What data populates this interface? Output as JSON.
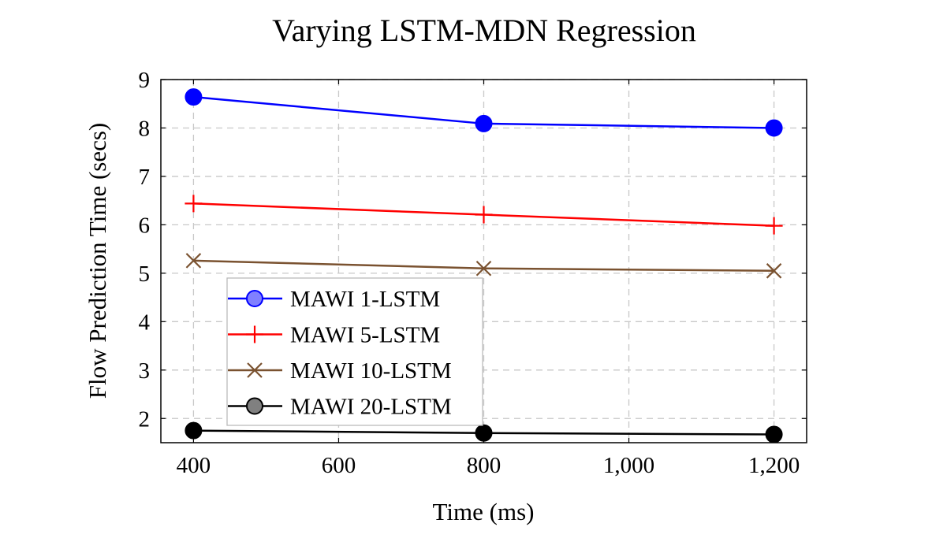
{
  "chart_data": {
    "type": "line",
    "title": "Varying LSTM-MDN Regression",
    "xlabel": "Time (ms)",
    "ylabel": "Flow Prediction Time (secs)",
    "x": [
      400,
      800,
      1200
    ],
    "xticks": [
      400,
      600,
      800,
      1000,
      1200
    ],
    "xtick_labels": [
      "400",
      "600",
      "800",
      "1,000",
      "1,200"
    ],
    "yticks": [
      2,
      3,
      4,
      5,
      6,
      7,
      8,
      9
    ],
    "ytick_labels": [
      "2",
      "3",
      "4",
      "5",
      "6",
      "7",
      "8",
      "9"
    ],
    "xlim": [
      355,
      1245
    ],
    "ylim": [
      1.5,
      9
    ],
    "grid": true,
    "legend_position": "lower-left",
    "series": [
      {
        "name": "MAWI 1-LSTM",
        "values": [
          8.64,
          8.09,
          8.0
        ],
        "color": "#0000ff",
        "marker": "circle"
      },
      {
        "name": "MAWI 5-LSTM",
        "values": [
          6.44,
          6.21,
          5.98
        ],
        "color": "#ff0000",
        "marker": "plus"
      },
      {
        "name": "MAWI 10-LSTM",
        "values": [
          5.26,
          5.1,
          5.05
        ],
        "color": "#7a5230",
        "marker": "x"
      },
      {
        "name": "MAWI 20-LSTM",
        "values": [
          1.75,
          1.7,
          1.67
        ],
        "color": "#000000",
        "marker": "circle"
      }
    ]
  }
}
